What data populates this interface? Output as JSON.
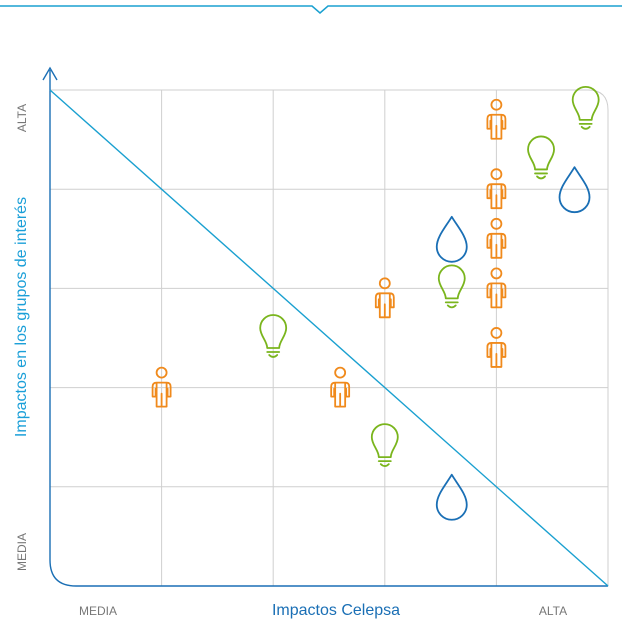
{
  "chart_data": {
    "type": "scatter",
    "title": "",
    "xlabel": "Impactos Celepsa",
    "ylabel": "Impactos en los grupos de interés",
    "x_tick_labels": {
      "low": "MEDIA",
      "high": "ALTA"
    },
    "y_tick_labels": {
      "low": "MEDIA",
      "high": "ALTA"
    },
    "xlim": [
      0,
      5
    ],
    "ylim": [
      0,
      5
    ],
    "grid": true,
    "diagonal": {
      "from": [
        0,
        5
      ],
      "to": [
        5,
        0
      ]
    },
    "colors": {
      "axis": "#1a6fb5",
      "diagonal": "#1aa0d0",
      "grid": "#cfcfcf",
      "person": "#f08a1c",
      "bulb": "#7ab51d",
      "drop": "#1a6fb5",
      "xlabel": "#1a6fb5",
      "ylabel": "#1a9fd8",
      "tick": "#777777"
    },
    "points": [
      {
        "icon": "person-icon",
        "x": 1.0,
        "y": 2.0
      },
      {
        "icon": "bulb-icon",
        "x": 2.0,
        "y": 2.5
      },
      {
        "icon": "person-icon",
        "x": 2.6,
        "y": 2.0
      },
      {
        "icon": "bulb-icon",
        "x": 3.0,
        "y": 1.4
      },
      {
        "icon": "drop-icon",
        "x": 3.6,
        "y": 0.9
      },
      {
        "icon": "person-icon",
        "x": 3.0,
        "y": 2.9
      },
      {
        "icon": "drop-icon",
        "x": 3.6,
        "y": 3.5
      },
      {
        "icon": "bulb-icon",
        "x": 3.6,
        "y": 3.0
      },
      {
        "icon": "person-icon",
        "x": 4.0,
        "y": 4.7
      },
      {
        "icon": "person-icon",
        "x": 4.0,
        "y": 4.0
      },
      {
        "icon": "person-icon",
        "x": 4.0,
        "y": 3.5
      },
      {
        "icon": "person-icon",
        "x": 4.0,
        "y": 3.0
      },
      {
        "icon": "person-icon",
        "x": 4.0,
        "y": 2.4
      },
      {
        "icon": "bulb-icon",
        "x": 4.4,
        "y": 4.3
      },
      {
        "icon": "drop-icon",
        "x": 4.7,
        "y": 4.0
      },
      {
        "icon": "bulb-icon",
        "x": 4.8,
        "y": 4.8
      }
    ]
  }
}
